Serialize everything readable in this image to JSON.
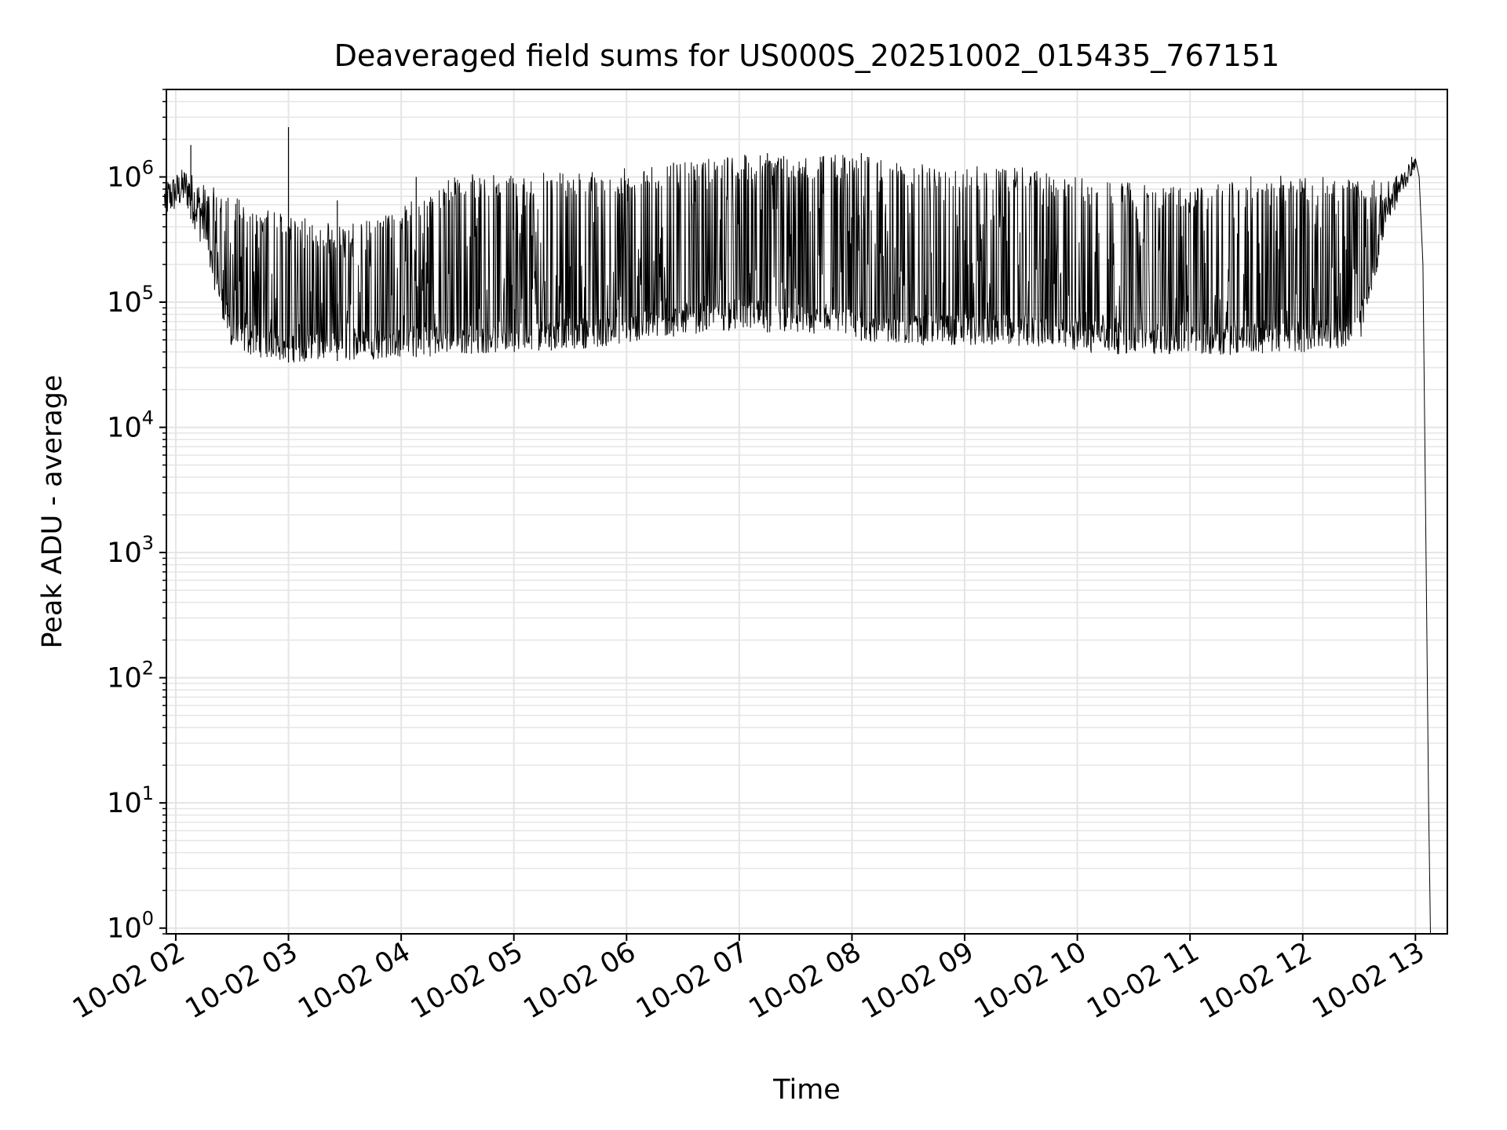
{
  "chart_data": {
    "type": "line",
    "title": "Deaveraged field sums for US000S_20251002_015435_767151",
    "xlabel": "Time",
    "ylabel": "Peak ADU - average",
    "yscale": "log",
    "ylim": [
      0.9,
      5000000
    ],
    "xlim": [
      "2025-10-02 01:55",
      "2025-10-02 13:17"
    ],
    "grid": true,
    "grid_color": "#e5e5e5",
    "line_color": "#000000",
    "x_ticks": [
      {
        "t": "2025-10-02 02:00",
        "label": "10-02 02"
      },
      {
        "t": "2025-10-02 03:00",
        "label": "10-02 03"
      },
      {
        "t": "2025-10-02 04:00",
        "label": "10-02 04"
      },
      {
        "t": "2025-10-02 05:00",
        "label": "10-02 05"
      },
      {
        "t": "2025-10-02 06:00",
        "label": "10-02 06"
      },
      {
        "t": "2025-10-02 07:00",
        "label": "10-02 07"
      },
      {
        "t": "2025-10-02 08:00",
        "label": "10-02 08"
      },
      {
        "t": "2025-10-02 09:00",
        "label": "10-02 09"
      },
      {
        "t": "2025-10-02 10:00",
        "label": "10-02 10"
      },
      {
        "t": "2025-10-02 11:00",
        "label": "10-02 11"
      },
      {
        "t": "2025-10-02 12:00",
        "label": "10-02 12"
      },
      {
        "t": "2025-10-02 13:00",
        "label": "10-02 13"
      }
    ],
    "y_ticks": [
      {
        "value": 1,
        "base": "10",
        "exp": "0"
      },
      {
        "value": 10,
        "base": "10",
        "exp": "1"
      },
      {
        "value": 100,
        "base": "10",
        "exp": "2"
      },
      {
        "value": 1000,
        "base": "10",
        "exp": "3"
      },
      {
        "value": 10000,
        "base": "10",
        "exp": "4"
      },
      {
        "value": 100000,
        "base": "10",
        "exp": "5"
      },
      {
        "value": 1000000,
        "base": "10",
        "exp": "6"
      }
    ],
    "series": [
      {
        "envelope": [
          {
            "t": "2025-10-02 01:54",
            "low": 450000,
            "high": 950000
          },
          {
            "t": "2025-10-02 02:05",
            "low": 600000,
            "high": 1200000
          },
          {
            "t": "2025-10-02 02:15",
            "low": 250000,
            "high": 900000
          },
          {
            "t": "2025-10-02 02:30",
            "low": 40000,
            "high": 700000
          },
          {
            "t": "2025-10-02 03:00",
            "low": 33000,
            "high": 500000
          },
          {
            "t": "2025-10-02 03:30",
            "low": 34000,
            "high": 400000
          },
          {
            "t": "2025-10-02 04:00",
            "low": 36000,
            "high": 600000
          },
          {
            "t": "2025-10-02 04:30",
            "low": 38000,
            "high": 1050000
          },
          {
            "t": "2025-10-02 05:00",
            "low": 40000,
            "high": 1050000
          },
          {
            "t": "2025-10-02 05:30",
            "low": 42000,
            "high": 1100000
          },
          {
            "t": "2025-10-02 06:00",
            "low": 45000,
            "high": 1200000
          },
          {
            "t": "2025-10-02 06:30",
            "low": 55000,
            "high": 1300000
          },
          {
            "t": "2025-10-02 07:00",
            "low": 60000,
            "high": 1500000
          },
          {
            "t": "2025-10-02 07:30",
            "low": 55000,
            "high": 1500000
          },
          {
            "t": "2025-10-02 08:00",
            "low": 50000,
            "high": 1500000
          },
          {
            "t": "2025-10-02 08:30",
            "low": 45000,
            "high": 1300000
          },
          {
            "t": "2025-10-02 09:00",
            "low": 45000,
            "high": 1250000
          },
          {
            "t": "2025-10-02 09:30",
            "low": 45000,
            "high": 1200000
          },
          {
            "t": "2025-10-02 10:00",
            "low": 40000,
            "high": 1000000
          },
          {
            "t": "2025-10-02 10:30",
            "low": 38000,
            "high": 900000
          },
          {
            "t": "2025-10-02 11:00",
            "low": 38000,
            "high": 800000
          },
          {
            "t": "2025-10-02 11:30",
            "low": 38000,
            "high": 1050000
          },
          {
            "t": "2025-10-02 12:00",
            "low": 40000,
            "high": 1000000
          },
          {
            "t": "2025-10-02 12:30",
            "low": 45000,
            "high": 1000000
          },
          {
            "t": "2025-10-02 12:45",
            "low": 400000,
            "high": 900000
          },
          {
            "t": "2025-10-02 13:00",
            "low": 1200000,
            "high": 1400000
          }
        ],
        "spikes": [
          {
            "t": "2025-10-02 02:08",
            "value": 1800000
          },
          {
            "t": "2025-10-02 03:00",
            "value": 2500000
          },
          {
            "t": "2025-10-02 03:26",
            "value": 650000
          },
          {
            "t": "2025-10-02 04:08",
            "value": 1000000
          },
          {
            "t": "2025-10-02 06:25",
            "value": 1300000
          },
          {
            "t": "2025-10-02 07:15",
            "value": 1550000
          },
          {
            "t": "2025-10-02 08:05",
            "value": 1550000
          },
          {
            "t": "2025-10-02 12:58",
            "value": 1450000
          }
        ],
        "falloff": [
          {
            "t": "2025-10-02 13:00",
            "value": 1400000
          },
          {
            "t": "2025-10-02 13:02",
            "value": 1000000
          },
          {
            "t": "2025-10-02 13:04",
            "value": 200000
          },
          {
            "t": "2025-10-02 13:05",
            "value": 8000
          },
          {
            "t": "2025-10-02 13:06",
            "value": 300
          },
          {
            "t": "2025-10-02 13:07",
            "value": 10
          },
          {
            "t": "2025-10-02 13:08",
            "value": 0.9
          }
        ]
      }
    ]
  }
}
